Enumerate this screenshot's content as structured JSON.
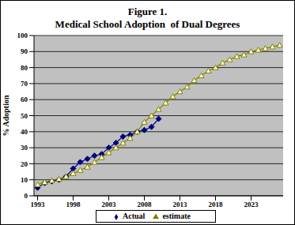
{
  "chart_data": {
    "type": "line",
    "title": "Figure 1.",
    "subtitle": "Medical School Adoption  of Dual Degrees",
    "y_label": "% Adoption",
    "x": [
      1993,
      1994,
      1995,
      1996,
      1997,
      1998,
      1999,
      2000,
      2001,
      2002,
      2003,
      2004,
      2005,
      2006,
      2007,
      2008,
      2009,
      2010,
      2011,
      2012,
      2013,
      2014,
      2015,
      2016,
      2017,
      2018,
      2019,
      2020,
      2021,
      2022,
      2023,
      2024,
      2025,
      2026,
      2027
    ],
    "series": [
      {
        "name": "Actual",
        "color": "#000080",
        "marker": "diamond",
        "values": [
          5,
          8,
          9,
          10,
          12,
          17,
          21,
          23,
          25,
          26,
          30,
          33,
          37,
          38,
          40,
          41,
          43,
          48,
          null,
          null,
          null,
          null,
          null,
          null,
          null,
          null,
          null,
          null,
          null,
          null,
          null,
          null,
          null,
          null,
          null
        ]
      },
      {
        "name": "estimate",
        "color": "#808000",
        "marker": "triangle",
        "values": [
          7,
          8.5,
          9.5,
          10.5,
          12,
          14,
          16,
          18,
          21,
          24,
          27,
          30,
          33,
          36,
          40,
          46,
          50,
          54,
          58,
          62,
          65,
          68,
          72,
          75,
          78,
          80,
          83,
          85,
          87,
          88,
          90,
          91,
          92,
          93,
          94
        ]
      }
    ],
    "xlim": [
      1992.5,
      2027.5
    ],
    "xticks": [
      1993,
      1998,
      2003,
      2008,
      2013,
      2018,
      2023
    ],
    "ylim": [
      0,
      100
    ],
    "yticks": [
      0,
      10,
      20,
      30,
      40,
      50,
      60,
      70,
      80,
      90,
      100
    ],
    "grid": true,
    "legend": "bottom"
  }
}
